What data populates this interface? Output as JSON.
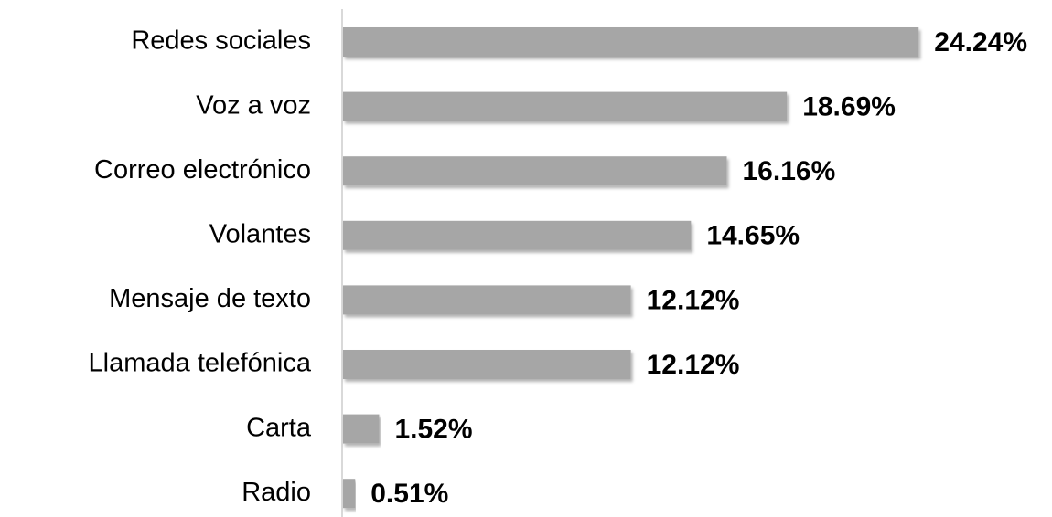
{
  "chart_data": {
    "type": "hbar",
    "categories": [
      "Redes sociales",
      "Voz a voz",
      "Correo electrónico",
      "Volantes",
      "Mensaje de texto",
      "Llamada telefónica",
      "Carta",
      "Radio"
    ],
    "values": [
      24.24,
      18.69,
      16.16,
      14.65,
      12.12,
      12.12,
      1.52,
      0.51
    ],
    "value_labels": [
      "24.24%",
      "18.69%",
      "16.16%",
      "14.65%",
      "12.12%",
      "12.12%",
      "1.52%",
      "0.51%"
    ],
    "color": "#a6a6a6",
    "xlim": [
      0,
      25
    ]
  }
}
